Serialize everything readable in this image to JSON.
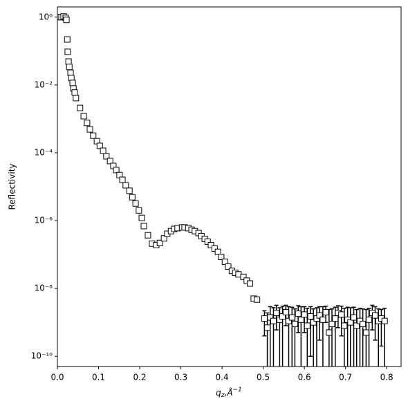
{
  "chart_data": {
    "type": "scatter",
    "y_label": "Reflectivity",
    "x_label": {
      "base": "q",
      "sub": "z",
      "rest": ",Å",
      "sup": "−1"
    },
    "xlim": [
      0,
      0.835
    ],
    "xticks": [
      {
        "value": 0,
        "label": "0.0"
      },
      0.1,
      0.2,
      0.3,
      0.4,
      0.5,
      0.6,
      0.7,
      0.8
    ],
    "ylim": [
      5e-11,
      2
    ],
    "ylog": true,
    "yticks": [
      {
        "value": 1,
        "label": "10⁰"
      },
      {
        "value": 0.01,
        "label": "10⁻²"
      },
      {
        "value": 0.0001,
        "label": "10⁻⁴"
      },
      {
        "value": 1e-06,
        "label": "10⁻⁶"
      },
      {
        "value": 1e-08,
        "label": "10⁻⁸"
      },
      {
        "value": 1e-10,
        "label": "10⁻¹⁰"
      }
    ],
    "grid": false,
    "marker_color": "#000000",
    "x": [
      0.005,
      0.01,
      0.015,
      0.02,
      0.022,
      0.024,
      0.025,
      0.027,
      0.029,
      0.032,
      0.034,
      0.037,
      0.039,
      0.042,
      0.045,
      0.055,
      0.064,
      0.072,
      0.079,
      0.087,
      0.096,
      0.103,
      0.111,
      0.119,
      0.128,
      0.136,
      0.143,
      0.151,
      0.158,
      0.166,
      0.175,
      0.182,
      0.19,
      0.198,
      0.205,
      0.21,
      0.22,
      0.23,
      0.24,
      0.249,
      0.259,
      0.267,
      0.276,
      0.284,
      0.292,
      0.303,
      0.309,
      0.318,
      0.326,
      0.334,
      0.343,
      0.35,
      0.358,
      0.365,
      0.373,
      0.382,
      0.39,
      0.398,
      0.407,
      0.415,
      0.424,
      0.432,
      0.44,
      0.452,
      0.46,
      0.468,
      0.477,
      0.485,
      0.503,
      0.51,
      0.517,
      0.525,
      0.532,
      0.54,
      0.547,
      0.555,
      0.562,
      0.57,
      0.577,
      0.585,
      0.592,
      0.6,
      0.607,
      0.615,
      0.622,
      0.63,
      0.637,
      0.645,
      0.652,
      0.66,
      0.667,
      0.675,
      0.682,
      0.69,
      0.697,
      0.705,
      0.712,
      0.72,
      0.727,
      0.735,
      0.742,
      0.75,
      0.757,
      0.765,
      0.772,
      0.78,
      0.787,
      0.795
    ],
    "values": [
      1.0,
      1.0,
      1.05,
      0.95,
      0.83,
      0.22,
      0.095,
      0.049,
      0.034,
      0.023,
      0.016,
      0.0115,
      0.0079,
      0.006,
      0.0041,
      0.0021,
      0.0012,
      0.00076,
      0.00049,
      0.00032,
      0.00022,
      0.00016,
      0.000115,
      7.9e-05,
      5.7e-05,
      4.1e-05,
      3.1e-05,
      2.2e-05,
      1.6e-05,
      1.1e-05,
      7.6e-06,
      4.9e-06,
      3.2e-06,
      2e-06,
      1.2e-06,
      6.9e-07,
      3.7e-07,
      2.1e-07,
      1.9e-07,
      2.2e-07,
      3e-07,
      4.1e-07,
      4.9e-07,
      5.7e-07,
      6e-07,
      6.3e-07,
      6.3e-07,
      6e-07,
      5.4e-07,
      4.9e-07,
      4.3e-07,
      3.5e-07,
      2.9e-07,
      2.4e-07,
      1.9e-07,
      1.5e-07,
      1.2e-07,
      8.5e-08,
      6.1e-08,
      4.4e-08,
      3.3e-08,
      2.9e-08,
      2.6e-08,
      2.2e-08,
      1.7e-08,
      1.4e-08,
      5e-09,
      4.7e-09,
      1.3e-09,
      7e-10,
      1.4e-09,
      1.1e-09,
      1.9e-09,
      1.2e-09,
      1.5e-09,
      2e-09,
      1.1e-09,
      1.4e-09,
      9e-10,
      1.8e-09,
      1.2e-09,
      1.7e-09,
      8e-10,
      1.5e-09,
      1e-09,
      1.3e-09,
      1.6e-09,
      1.2e-09,
      2e-09,
      5e-10,
      9e-10,
      1.3e-09,
      1.9e-09,
      1.7e-09,
      8e-10,
      1.2e-09,
      1e-09,
      1.4e-09,
      8e-10,
      1.1e-09,
      9e-10,
      5e-10,
      1.2e-09,
      1.9e-09,
      1.6e-09,
      1.1e-09,
      1.3e-09,
      1.1e-09
    ],
    "errors": [
      null,
      null,
      null,
      null,
      null,
      null,
      null,
      null,
      null,
      null,
      null,
      null,
      null,
      null,
      null,
      null,
      null,
      null,
      null,
      null,
      null,
      null,
      null,
      null,
      null,
      null,
      null,
      null,
      null,
      null,
      null,
      null,
      null,
      null,
      null,
      null,
      null,
      null,
      null,
      null,
      null,
      null,
      null,
      null,
      null,
      null,
      null,
      null,
      null,
      null,
      null,
      null,
      null,
      null,
      null,
      null,
      null,
      null,
      null,
      null,
      null,
      null,
      null,
      null,
      null,
      null,
      null,
      null,
      9e-10,
      1.2e-09,
      1.5e-09,
      1.6e-09,
      1.3e-09,
      1.5e-09,
      1.5e-09,
      1.2e-09,
      1.8e-09,
      1.4e-09,
      1.6e-09,
      1.3e-09,
      1.7e-09,
      1.2e-09,
      1.8e-09,
      1.4e-09,
      1.5e-09,
      1.4e-09,
      1.3e-09,
      1.7e-09,
      1e-09,
      1.9e-09,
      1.6e-09,
      1.5e-09,
      1.2e-09,
      1.3e-09,
      1.8e-09,
      1.6e-09,
      1.7e-09,
      1.4e-09,
      1.6e-09,
      1.5e-09,
      1.6e-09,
      1.9e-09,
      1.4e-09,
      1.3e-09,
      1.3e-09,
      1.4e-09,
      1.1e-09,
      1.5e-09
    ]
  }
}
